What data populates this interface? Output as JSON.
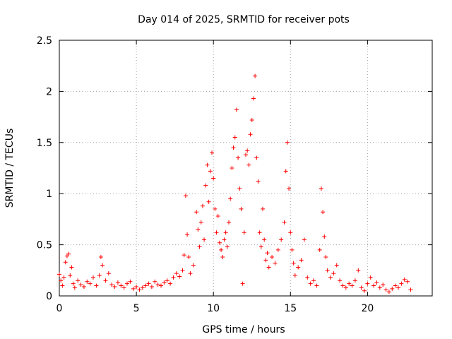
{
  "chart_data": {
    "type": "scatter",
    "title": "Day 014 of 2025, SRMTID for receiver pots",
    "xlabel": "GPS time / hours",
    "ylabel": "SRMTID / TECUs",
    "xlim": [
      0,
      24.2
    ],
    "ylim": [
      0,
      2.5
    ],
    "xticks": [
      0,
      5,
      10,
      15,
      20
    ],
    "xtick_labels": [
      "0",
      "5",
      "10",
      "15",
      "20"
    ],
    "yticks": [
      0,
      0.5,
      1,
      1.5,
      2,
      2.5
    ],
    "ytick_labels": [
      "0",
      "0.5",
      "1",
      "1.5",
      "2",
      "2.5"
    ],
    "grid": true,
    "marker": "+",
    "series": [
      {
        "name": "SRMTID",
        "color": "#ff0000",
        "points": [
          [
            0.0,
            0.21
          ],
          [
            0.1,
            0.15
          ],
          [
            0.2,
            0.1
          ],
          [
            0.3,
            0.18
          ],
          [
            0.4,
            0.33
          ],
          [
            0.5,
            0.39
          ],
          [
            0.6,
            0.41
          ],
          [
            0.7,
            0.2
          ],
          [
            0.8,
            0.28
          ],
          [
            0.9,
            0.12
          ],
          [
            1.0,
            0.08
          ],
          [
            1.2,
            0.15
          ],
          [
            1.4,
            0.11
          ],
          [
            1.6,
            0.09
          ],
          [
            1.8,
            0.14
          ],
          [
            2.0,
            0.12
          ],
          [
            2.2,
            0.18
          ],
          [
            2.4,
            0.1
          ],
          [
            2.6,
            0.2
          ],
          [
            2.7,
            0.38
          ],
          [
            2.8,
            0.3
          ],
          [
            3.0,
            0.15
          ],
          [
            3.2,
            0.22
          ],
          [
            3.4,
            0.11
          ],
          [
            3.6,
            0.09
          ],
          [
            3.8,
            0.13
          ],
          [
            4.0,
            0.1
          ],
          [
            4.2,
            0.08
          ],
          [
            4.4,
            0.12
          ],
          [
            4.6,
            0.14
          ],
          [
            4.8,
            0.07
          ],
          [
            5.0,
            0.09
          ],
          [
            5.2,
            0.06
          ],
          [
            5.4,
            0.08
          ],
          [
            5.6,
            0.1
          ],
          [
            5.8,
            0.12
          ],
          [
            6.0,
            0.09
          ],
          [
            6.2,
            0.14
          ],
          [
            6.4,
            0.11
          ],
          [
            6.6,
            0.1
          ],
          [
            6.8,
            0.13
          ],
          [
            7.0,
            0.15
          ],
          [
            7.2,
            0.12
          ],
          [
            7.4,
            0.18
          ],
          [
            7.6,
            0.22
          ],
          [
            7.8,
            0.19
          ],
          [
            8.0,
            0.25
          ],
          [
            8.1,
            0.4
          ],
          [
            8.2,
            0.98
          ],
          [
            8.3,
            0.6
          ],
          [
            8.4,
            0.38
          ],
          [
            8.5,
            0.22
          ],
          [
            8.7,
            0.3
          ],
          [
            8.9,
            0.82
          ],
          [
            9.0,
            0.65
          ],
          [
            9.1,
            0.48
          ],
          [
            9.2,
            0.72
          ],
          [
            9.3,
            0.88
          ],
          [
            9.4,
            0.55
          ],
          [
            9.5,
            1.08
          ],
          [
            9.6,
            1.28
          ],
          [
            9.7,
            0.92
          ],
          [
            9.8,
            1.22
          ],
          [
            9.9,
            1.4
          ],
          [
            10.0,
            1.15
          ],
          [
            10.1,
            0.85
          ],
          [
            10.2,
            0.62
          ],
          [
            10.3,
            0.78
          ],
          [
            10.4,
            0.52
          ],
          [
            10.5,
            0.45
          ],
          [
            10.6,
            0.38
          ],
          [
            10.7,
            0.55
          ],
          [
            10.8,
            0.62
          ],
          [
            10.9,
            0.48
          ],
          [
            11.0,
            0.72
          ],
          [
            11.1,
            0.95
          ],
          [
            11.2,
            1.25
          ],
          [
            11.3,
            1.45
          ],
          [
            11.4,
            1.55
          ],
          [
            11.5,
            1.82
          ],
          [
            11.6,
            1.35
          ],
          [
            11.7,
            1.05
          ],
          [
            11.8,
            0.85
          ],
          [
            11.9,
            0.12
          ],
          [
            12.0,
            0.62
          ],
          [
            12.1,
            1.38
          ],
          [
            12.2,
            1.42
          ],
          [
            12.3,
            1.28
          ],
          [
            12.4,
            1.58
          ],
          [
            12.5,
            1.72
          ],
          [
            12.6,
            1.93
          ],
          [
            12.7,
            2.15
          ],
          [
            12.8,
            1.35
          ],
          [
            12.9,
            1.12
          ],
          [
            13.0,
            0.62
          ],
          [
            13.1,
            0.48
          ],
          [
            13.2,
            0.85
          ],
          [
            13.3,
            0.55
          ],
          [
            13.4,
            0.35
          ],
          [
            13.5,
            0.42
          ],
          [
            13.6,
            0.28
          ],
          [
            13.8,
            0.38
          ],
          [
            14.0,
            0.32
          ],
          [
            14.2,
            0.45
          ],
          [
            14.4,
            0.55
          ],
          [
            14.6,
            0.72
          ],
          [
            14.7,
            1.22
          ],
          [
            14.8,
            1.5
          ],
          [
            14.9,
            1.05
          ],
          [
            15.0,
            0.62
          ],
          [
            15.1,
            0.45
          ],
          [
            15.2,
            0.32
          ],
          [
            15.3,
            0.2
          ],
          [
            15.5,
            0.28
          ],
          [
            15.7,
            0.35
          ],
          [
            15.9,
            0.55
          ],
          [
            16.1,
            0.18
          ],
          [
            16.3,
            0.12
          ],
          [
            16.5,
            0.15
          ],
          [
            16.7,
            0.1
          ],
          [
            16.9,
            0.45
          ],
          [
            17.0,
            1.05
          ],
          [
            17.1,
            0.82
          ],
          [
            17.2,
            0.58
          ],
          [
            17.3,
            0.38
          ],
          [
            17.4,
            0.25
          ],
          [
            17.6,
            0.18
          ],
          [
            17.8,
            0.22
          ],
          [
            18.0,
            0.3
          ],
          [
            18.2,
            0.15
          ],
          [
            18.4,
            0.1
          ],
          [
            18.6,
            0.08
          ],
          [
            18.8,
            0.12
          ],
          [
            19.0,
            0.1
          ],
          [
            19.2,
            0.15
          ],
          [
            19.4,
            0.25
          ],
          [
            19.6,
            0.08
          ],
          [
            19.8,
            0.05
          ],
          [
            20.0,
            0.12
          ],
          [
            20.2,
            0.18
          ],
          [
            20.4,
            0.1
          ],
          [
            20.6,
            0.13
          ],
          [
            20.8,
            0.08
          ],
          [
            21.0,
            0.11
          ],
          [
            21.2,
            0.06
          ],
          [
            21.4,
            0.04
          ],
          [
            21.6,
            0.07
          ],
          [
            21.8,
            0.1
          ],
          [
            22.0,
            0.08
          ],
          [
            22.2,
            0.12
          ],
          [
            22.4,
            0.16
          ],
          [
            22.6,
            0.14
          ],
          [
            22.8,
            0.06
          ]
        ]
      }
    ]
  }
}
